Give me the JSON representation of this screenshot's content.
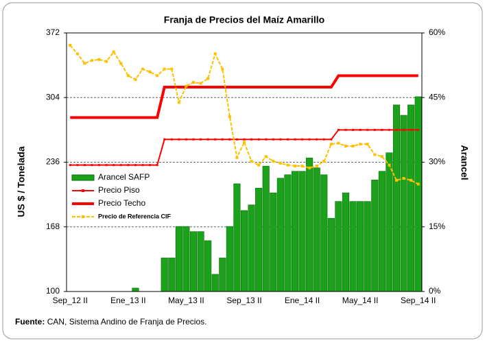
{
  "chart_data": {
    "type": "combo",
    "title": "Franja de Precios del Maíz Amarillo",
    "y_label": "US $ / Tonelada",
    "y2_label": "Arancel",
    "source_label": "Fuente:",
    "source": "CAN, Sistema Andino de Franja de Precios.",
    "categories": [
      "Sep_12 II",
      null,
      null,
      null,
      null,
      null,
      null,
      null,
      "Ene_13 II",
      null,
      null,
      null,
      null,
      null,
      null,
      null,
      "May_13 II",
      null,
      null,
      null,
      null,
      null,
      null,
      null,
      "Sep_13 II",
      null,
      null,
      null,
      null,
      null,
      null,
      null,
      "Ene_14 II",
      null,
      null,
      null,
      null,
      null,
      null,
      null,
      "May_14 II",
      null,
      null,
      null,
      null,
      null,
      null,
      null,
      "Sep_14 II"
    ],
    "ylim": [
      100,
      372
    ],
    "yticks": [
      100,
      168,
      236,
      304,
      372
    ],
    "y2lim": [
      0,
      60
    ],
    "y2ticks": [
      {
        "value": 0,
        "label": "0%"
      },
      {
        "value": 15,
        "label": "15%"
      },
      {
        "value": 30,
        "label": "30%"
      },
      {
        "value": 45,
        "label": "45%"
      },
      {
        "value": 60,
        "label": "60%"
      }
    ],
    "grid": true,
    "legend": "left",
    "series": [
      {
        "name": "Arancel SAFP",
        "type": "bar",
        "axis": "y2",
        "color": "#1aa31a",
        "values": [
          0,
          0,
          0,
          0,
          0,
          0,
          0,
          0,
          0,
          0.8,
          0,
          0,
          0,
          7.8,
          7.8,
          15.1,
          15.1,
          13.9,
          13.9,
          11.8,
          4.0,
          7.8,
          15.1,
          25.0,
          18.8,
          20.1,
          24.0,
          29.1,
          22.9,
          26.3,
          27.1,
          27.9,
          27.9,
          31.0,
          28.7,
          27.1,
          17.0,
          20.9,
          22.9,
          20.9,
          20.9,
          20.9,
          25.9,
          27.9,
          32.2,
          43.3,
          40.9,
          43.3,
          45.2
        ]
      },
      {
        "name": "Precio Piso",
        "type": "line",
        "axis": "y",
        "color": "#ff0000",
        "width": 2,
        "values": [
          233,
          233,
          233,
          233,
          233,
          233,
          233,
          233,
          233,
          233,
          233,
          233,
          233,
          260,
          260,
          260,
          260,
          260,
          260,
          260,
          260,
          260,
          260,
          260,
          260,
          260,
          260,
          260,
          260,
          260,
          260,
          260,
          260,
          260,
          260,
          260,
          260,
          270,
          270,
          270,
          270,
          270,
          270,
          270,
          270,
          270,
          270,
          270,
          270
        ]
      },
      {
        "name": "Precio Techo",
        "type": "line",
        "axis": "y",
        "color": "#ff0000",
        "width": 4,
        "values": [
          283,
          283,
          283,
          283,
          283,
          283,
          283,
          283,
          283,
          283,
          283,
          283,
          283,
          315,
          315,
          315,
          315,
          315,
          315,
          315,
          315,
          315,
          315,
          315,
          315,
          315,
          315,
          315,
          315,
          315,
          315,
          315,
          315,
          315,
          315,
          315,
          315,
          327,
          327,
          327,
          327,
          327,
          327,
          327,
          327,
          327,
          327,
          327,
          327
        ]
      },
      {
        "name": "Precio de Referencia CIF",
        "type": "line",
        "axis": "y",
        "color": "#ffc000",
        "width": 2,
        "values": [
          359,
          350,
          340,
          343,
          344,
          342,
          352,
          340,
          327,
          323,
          334,
          331,
          327,
          334,
          334,
          299,
          316,
          320,
          319,
          324,
          350,
          334,
          284,
          241,
          257,
          237,
          233,
          242,
          237,
          235,
          233,
          232,
          232,
          230,
          232,
          237,
          255,
          256,
          253,
          253,
          255,
          255,
          244,
          242,
          233,
          217,
          219,
          217,
          213
        ]
      }
    ]
  }
}
